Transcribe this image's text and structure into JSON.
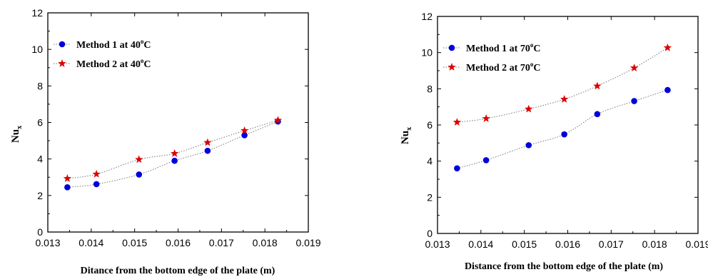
{
  "chart_data": [
    {
      "type": "scatter",
      "xlabel": "Ditance from the bottom edge of the plate (m)",
      "ylabel": "Nu",
      "ylabel_sub": "x",
      "xlim": [
        0.013,
        0.019
      ],
      "ylim": [
        0,
        12
      ],
      "xticks": [
        "0.013",
        "0.014",
        "0.015",
        "0.016",
        "0.017",
        "0.018",
        "0.019"
      ],
      "yticks": [
        "0",
        "2",
        "4",
        "6",
        "8",
        "10",
        "12"
      ],
      "legend_position": "top-left",
      "grid": false,
      "series": [
        {
          "name": "Method 1 at 40",
          "name_sup": "o",
          "name_tail": "C",
          "marker": "circle",
          "color": "#0000dd",
          "x": [
            0.01345,
            0.01412,
            0.0151,
            0.01592,
            0.01668,
            0.01753,
            0.0183
          ],
          "y": [
            2.45,
            2.62,
            3.15,
            3.9,
            4.45,
            5.3,
            6.05
          ]
        },
        {
          "name": "Method 2 at 40",
          "name_sup": "o",
          "name_tail": "C",
          "marker": "star",
          "color": "#dd0000",
          "x": [
            0.01345,
            0.01412,
            0.0151,
            0.01592,
            0.01668,
            0.01753,
            0.0183
          ],
          "y": [
            2.93,
            3.17,
            3.97,
            4.3,
            4.9,
            5.55,
            6.12
          ]
        }
      ]
    },
    {
      "type": "scatter",
      "xlabel": "Distance from the bottom edge of the plate (m)",
      "ylabel": "Nu",
      "ylabel_sub": "x",
      "xlim": [
        0.013,
        0.019
      ],
      "ylim": [
        0,
        12
      ],
      "xticks": [
        "0.013",
        "0.014",
        "0.015",
        "0.016",
        "0.017",
        "0.018",
        "0.019"
      ],
      "yticks": [
        "0",
        "2",
        "4",
        "6",
        "8",
        "10",
        "12"
      ],
      "legend_position": "top-left",
      "grid": false,
      "series": [
        {
          "name": "Method 1 at 70",
          "name_sup": "o",
          "name_tail": "C",
          "marker": "circle",
          "color": "#0000dd",
          "x": [
            0.01345,
            0.01412,
            0.0151,
            0.01592,
            0.01668,
            0.01753,
            0.0183
          ],
          "y": [
            3.6,
            4.05,
            4.88,
            5.48,
            6.6,
            7.32,
            7.93
          ]
        },
        {
          "name": "Method 2 at 70",
          "name_sup": "o",
          "name_tail": "C",
          "marker": "star",
          "color": "#dd0000",
          "x": [
            0.01345,
            0.01412,
            0.0151,
            0.01592,
            0.01668,
            0.01753,
            0.0183
          ],
          "y": [
            6.15,
            6.35,
            6.88,
            7.42,
            8.15,
            9.15,
            10.27
          ]
        }
      ]
    }
  ]
}
